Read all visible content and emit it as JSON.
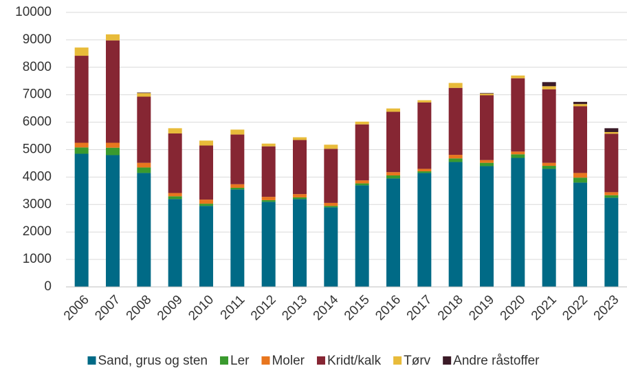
{
  "chart_data": {
    "type": "stacked_bar",
    "categories": [
      "2006",
      "2007",
      "2008",
      "2009",
      "2010",
      "2011",
      "2012",
      "2013",
      "2014",
      "2015",
      "2016",
      "2017",
      "2018",
      "2019",
      "2020",
      "2021",
      "2022",
      "2023"
    ],
    "series": [
      {
        "name": "Sand, grus og sten",
        "color": "#006a86",
        "values": [
          4850,
          4800,
          4150,
          3200,
          2950,
          3550,
          3100,
          3200,
          2900,
          3700,
          3950,
          4150,
          4550,
          4400,
          4700,
          4300,
          3800,
          3250
        ]
      },
      {
        "name": "Ler",
        "color": "#3a9a2e",
        "values": [
          230,
          270,
          200,
          100,
          80,
          60,
          60,
          60,
          50,
          70,
          110,
          60,
          130,
          120,
          130,
          110,
          180,
          90
        ]
      },
      {
        "name": "Moler",
        "color": "#e8761e",
        "values": [
          170,
          180,
          170,
          120,
          150,
          130,
          120,
          120,
          110,
          110,
          120,
          90,
          130,
          100,
          100,
          110,
          170,
          110
        ]
      },
      {
        "name": "Kridt/kalk",
        "color": "#862633",
        "values": [
          3170,
          3730,
          2410,
          2170,
          1970,
          1810,
          1840,
          1970,
          1970,
          2040,
          2200,
          2420,
          2440,
          2360,
          2670,
          2680,
          2430,
          2130
        ]
      },
      {
        "name": "Tørv",
        "color": "#e8bb3a",
        "values": [
          300,
          220,
          130,
          190,
          180,
          180,
          100,
          100,
          150,
          100,
          120,
          80,
          180,
          60,
          100,
          110,
          80,
          60
        ]
      },
      {
        "name": "Andre råstoffer",
        "color": "#3b1a27",
        "values": [
          0,
          0,
          20,
          0,
          0,
          0,
          0,
          0,
          0,
          0,
          0,
          0,
          0,
          20,
          0,
          150,
          80,
          140
        ]
      }
    ],
    "ylim": [
      0,
      10000
    ],
    "yticks": [
      0,
      1000,
      2000,
      3000,
      4000,
      5000,
      6000,
      7000,
      8000,
      9000,
      10000
    ],
    "grid": true,
    "legend": "bottom"
  }
}
